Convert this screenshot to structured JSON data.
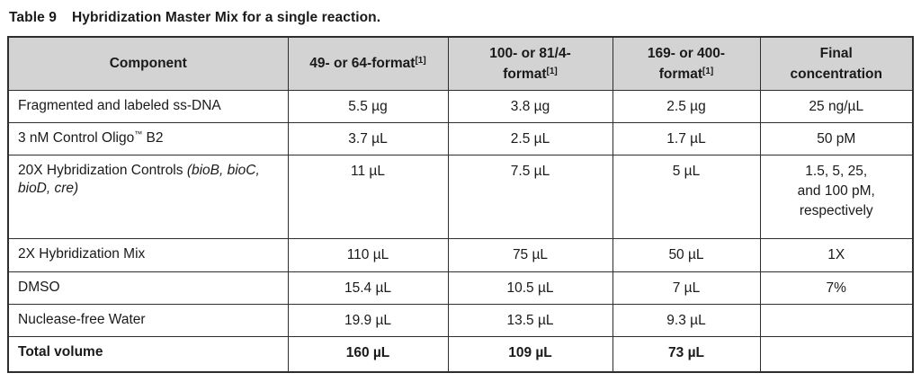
{
  "caption": {
    "label": "Table 9",
    "text": "Hybridization Master Mix for a single reaction."
  },
  "colors": {
    "header_background": "#d3d3d3",
    "border": "#2e2e2e",
    "text": "#1a1a1a",
    "page_background": "#ffffff"
  },
  "table": {
    "headers": [
      {
        "lines": [
          "Component"
        ]
      },
      {
        "lines": [
          "49- or 64-format[1]"
        ]
      },
      {
        "lines": [
          "100- or 81/4-",
          "format[1]"
        ]
      },
      {
        "lines": [
          "169- or 400-",
          "format[1]"
        ]
      },
      {
        "lines": [
          "Final",
          "concentration"
        ]
      }
    ],
    "rows": [
      {
        "component": {
          "text": "Fragmented and labeled ss-DNA"
        },
        "values": [
          "5.5 µg",
          "3.8 µg",
          "2.5 µg",
          "25 ng/µL"
        ],
        "bold": false
      },
      {
        "component": {
          "text": "3 nM Control Oligo™ B2"
        },
        "values": [
          "3.7 µL",
          "2.5 µL",
          "1.7 µL",
          "50 pM"
        ],
        "bold": false
      },
      {
        "component": {
          "text": "20X Hybridization Controls ",
          "italic": "(bioB, bioC, bioD, cre)"
        },
        "values": [
          "11 µL",
          "7.5 µL",
          "5 µL",
          {
            "lines": [
              "1.5, 5, 25,",
              "and 100 pM,",
              "respectively"
            ]
          }
        ],
        "bold": false
      },
      {
        "component": {
          "text": "2X Hybridization Mix"
        },
        "values": [
          "110 µL",
          "75 µL",
          "50 µL",
          "1X"
        ],
        "bold": false
      },
      {
        "component": {
          "text": "DMSO"
        },
        "values": [
          "15.4 µL",
          "10.5 µL",
          "7 µL",
          "7%"
        ],
        "bold": false
      },
      {
        "component": {
          "text": "Nuclease-free Water"
        },
        "values": [
          "19.9 µL",
          "13.5 µL",
          "9.3 µL",
          ""
        ],
        "bold": false
      },
      {
        "component": {
          "text": "Total volume"
        },
        "values": [
          "160 µL",
          "109 µL",
          "73 µL",
          ""
        ],
        "bold": true
      }
    ]
  }
}
